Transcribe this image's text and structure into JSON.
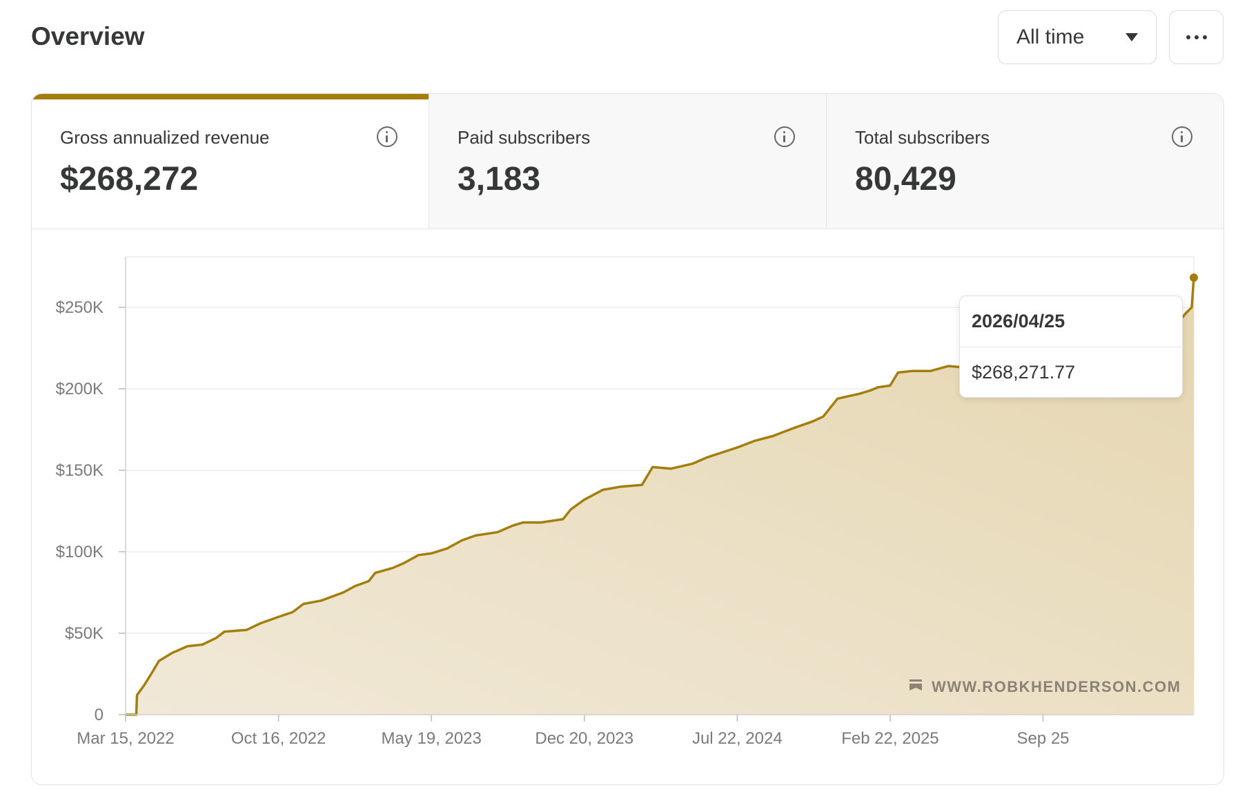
{
  "header": {
    "title": "Overview",
    "range_select": {
      "value": "All time",
      "icon": "chevron-down-icon"
    },
    "more_button": {
      "icon": "more-horizontal-icon"
    }
  },
  "tabs": [
    {
      "label": "Gross annualized revenue",
      "value": "$268,272",
      "active": true,
      "icon": "info-icon"
    },
    {
      "label": "Paid subscribers",
      "value": "3,183",
      "active": false,
      "icon": "info-icon"
    },
    {
      "label": "Total subscribers",
      "value": "80,429",
      "active": false,
      "icon": "info-icon"
    }
  ],
  "tooltip": {
    "date": "2026/04/25",
    "value": "$268,271.77"
  },
  "watermark": {
    "text": "WWW.ROBKHENDERSON.COM",
    "icon": "bookmark-icon"
  },
  "colors": {
    "accent": "#a47d0b",
    "fill": "#eadfc4",
    "grid": "#ececec",
    "text": "#363737"
  },
  "chart_data": {
    "type": "area",
    "title": "",
    "xlabel": "",
    "ylabel": "",
    "ylim": [
      0,
      281000
    ],
    "y_ticks": [
      {
        "value": 0,
        "label": "0"
      },
      {
        "value": 50000,
        "label": "$50K"
      },
      {
        "value": 100000,
        "label": "$100K"
      },
      {
        "value": 150000,
        "label": "$150K"
      },
      {
        "value": 200000,
        "label": "$200K"
      },
      {
        "value": 250000,
        "label": "$250K"
      }
    ],
    "x_range": [
      "2022-03-15",
      "2026-04-25"
    ],
    "x_ticks": [
      {
        "date": "2022-03-15",
        "label": "Mar 15, 2022"
      },
      {
        "date": "2022-10-16",
        "label": "Oct 16, 2022"
      },
      {
        "date": "2023-05-19",
        "label": "May 19, 2023"
      },
      {
        "date": "2023-12-20",
        "label": "Dec 20, 2023"
      },
      {
        "date": "2024-07-22",
        "label": "Jul 22, 2024"
      },
      {
        "date": "2025-02-22",
        "label": "Feb 22, 2025"
      },
      {
        "date": "2025-09-25",
        "label": "Sep 25"
      }
    ],
    "grid": true,
    "legend": "none",
    "series": [
      {
        "name": "",
        "points": [
          [
            "2022-03-15",
            0
          ],
          [
            "2022-03-30",
            0
          ],
          [
            "2022-03-31",
            12000
          ],
          [
            "2022-04-10",
            18000
          ],
          [
            "2022-04-20",
            25000
          ],
          [
            "2022-05-01",
            33000
          ],
          [
            "2022-05-20",
            38000
          ],
          [
            "2022-06-10",
            42000
          ],
          [
            "2022-07-01",
            43000
          ],
          [
            "2022-07-20",
            47000
          ],
          [
            "2022-08-01",
            51000
          ],
          [
            "2022-09-01",
            52000
          ],
          [
            "2022-09-20",
            56000
          ],
          [
            "2022-10-16",
            60000
          ],
          [
            "2022-11-05",
            63000
          ],
          [
            "2022-11-20",
            68000
          ],
          [
            "2022-12-15",
            70000
          ],
          [
            "2023-01-15",
            75000
          ],
          [
            "2023-02-01",
            79000
          ],
          [
            "2023-02-20",
            82000
          ],
          [
            "2023-03-01",
            87000
          ],
          [
            "2023-03-25",
            90000
          ],
          [
            "2023-04-10",
            93000
          ],
          [
            "2023-05-01",
            98000
          ],
          [
            "2023-05-19",
            99000
          ],
          [
            "2023-06-10",
            102000
          ],
          [
            "2023-07-01",
            107000
          ],
          [
            "2023-07-20",
            110000
          ],
          [
            "2023-08-20",
            112000
          ],
          [
            "2023-09-10",
            116000
          ],
          [
            "2023-09-25",
            118000
          ],
          [
            "2023-10-20",
            118000
          ],
          [
            "2023-11-20",
            120000
          ],
          [
            "2023-12-01",
            126000
          ],
          [
            "2023-12-20",
            132000
          ],
          [
            "2024-01-15",
            138000
          ],
          [
            "2024-02-10",
            140000
          ],
          [
            "2024-03-10",
            141000
          ],
          [
            "2024-03-25",
            152000
          ],
          [
            "2024-04-20",
            151000
          ],
          [
            "2024-05-20",
            154000
          ],
          [
            "2024-06-10",
            158000
          ],
          [
            "2024-07-01",
            161000
          ],
          [
            "2024-07-22",
            164000
          ],
          [
            "2024-08-15",
            168000
          ],
          [
            "2024-09-10",
            171000
          ],
          [
            "2024-10-10",
            176000
          ],
          [
            "2024-11-05",
            180000
          ],
          [
            "2024-11-20",
            183000
          ],
          [
            "2024-12-10",
            194000
          ],
          [
            "2025-01-10",
            197000
          ],
          [
            "2025-01-25",
            199000
          ],
          [
            "2025-02-05",
            201000
          ],
          [
            "2025-02-22",
            202000
          ],
          [
            "2025-03-05",
            210000
          ],
          [
            "2025-03-25",
            211000
          ],
          [
            "2025-04-20",
            211000
          ],
          [
            "2025-05-15",
            214000
          ],
          [
            "2025-06-10",
            213000
          ],
          [
            "2025-07-05",
            211000
          ],
          [
            "2025-07-25",
            214000
          ],
          [
            "2025-08-15",
            215000
          ],
          [
            "2025-09-10",
            212000
          ],
          [
            "2025-09-25",
            211000
          ],
          [
            "2025-10-15",
            214000
          ],
          [
            "2025-10-30",
            219000
          ],
          [
            "2025-11-15",
            218000
          ],
          [
            "2025-12-05",
            221000
          ],
          [
            "2026-01-05",
            221000
          ],
          [
            "2026-02-01",
            230000
          ],
          [
            "2026-03-01",
            235000
          ],
          [
            "2026-03-20",
            241000
          ],
          [
            "2026-04-05",
            242000
          ],
          [
            "2026-04-15",
            247000
          ],
          [
            "2026-04-22",
            250000
          ],
          [
            "2026-04-25",
            268272
          ]
        ]
      }
    ],
    "highlight": {
      "date": "2026-04-25",
      "value": 268271.77
    }
  }
}
